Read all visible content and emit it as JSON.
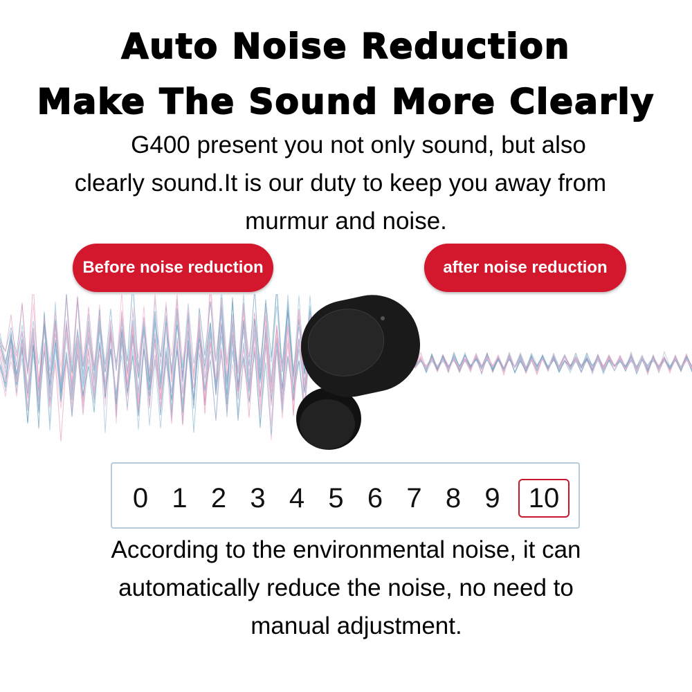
{
  "header": {
    "title": "Auto Noise Reduction",
    "subtitle": "Make The Sound More Clearly"
  },
  "intro": {
    "lines": [
      "G400 present you not only sound, but also",
      "clearly sound.It is our duty to keep you away from",
      "murmur and noise."
    ]
  },
  "labels": {
    "before": "Before noise reduction",
    "after": "after noise reduction"
  },
  "scale": {
    "levels": [
      "0",
      "1",
      "2",
      "3",
      "4",
      "5",
      "6",
      "7",
      "8",
      "9",
      "10"
    ]
  },
  "caption": {
    "lines": [
      "According to the environmental noise, it can",
      "automatically reduce the noise, no need to",
      "manual adjustment."
    ]
  }
}
